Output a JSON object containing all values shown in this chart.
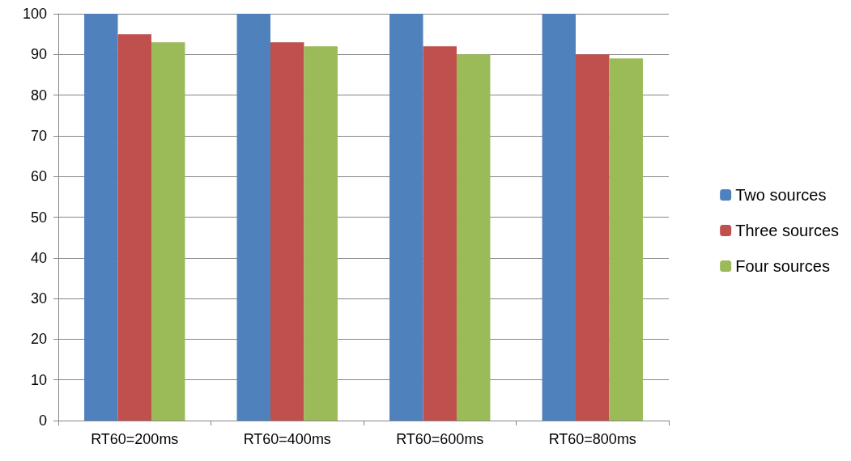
{
  "chart_data": {
    "type": "bar",
    "categories": [
      "RT60=200ms",
      "RT60=400ms",
      "RT60=600ms",
      "RT60=800ms"
    ],
    "series": [
      {
        "name": "Two sources",
        "color": "#4f81bd",
        "values": [
          100,
          100,
          100,
          100
        ]
      },
      {
        "name": "Three sources",
        "color": "#c0504d",
        "values": [
          95,
          93,
          92,
          90
        ]
      },
      {
        "name": "Four sources",
        "color": "#9bbb59",
        "values": [
          93,
          92,
          90,
          89
        ]
      }
    ],
    "ylim": [
      0,
      100
    ],
    "yticks": [
      0,
      10,
      20,
      30,
      40,
      50,
      60,
      70,
      80,
      90,
      100
    ],
    "grid": "y",
    "legend": "right"
  }
}
